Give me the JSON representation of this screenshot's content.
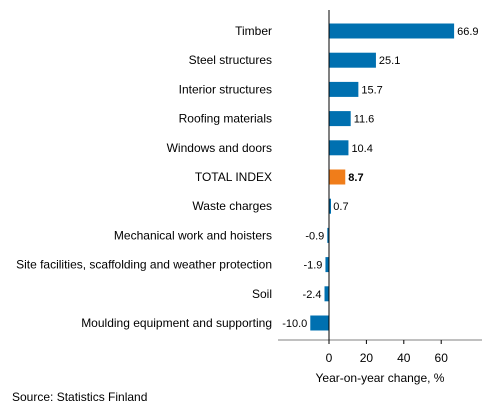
{
  "chart_data": {
    "type": "bar",
    "orientation": "horizontal",
    "categories": [
      "Timber",
      "Steel structures",
      "Interior structures",
      "Roofing materials",
      "Windows and doors",
      "TOTAL INDEX",
      "Waste charges",
      "Mechanical work and hoisters",
      "Site facilities, scaffolding and weather protection",
      "Soil",
      "Moulding equipment and supporting"
    ],
    "values": [
      66.9,
      25.1,
      15.7,
      11.6,
      10.4,
      8.7,
      0.7,
      -0.9,
      -1.9,
      -2.4,
      -10.0
    ],
    "value_labels": [
      "66.9",
      "25.1",
      "15.7",
      "11.6",
      "10.4",
      "8.7",
      "0.7",
      "-0.9",
      "-1.9",
      "-2.4",
      "-10.0"
    ],
    "highlight_category": "TOTAL INDEX",
    "colors": {
      "default": "#0070B0",
      "highlight": "#F07D1A",
      "axis": "#000000",
      "divider": "#808080"
    },
    "xlabel": "Year-on-year change, %",
    "xticks": [
      0,
      20,
      40,
      60
    ],
    "xlim": [
      -10,
      70
    ],
    "grid": false,
    "legend": "none",
    "source": "Source: Statistics Finland"
  }
}
